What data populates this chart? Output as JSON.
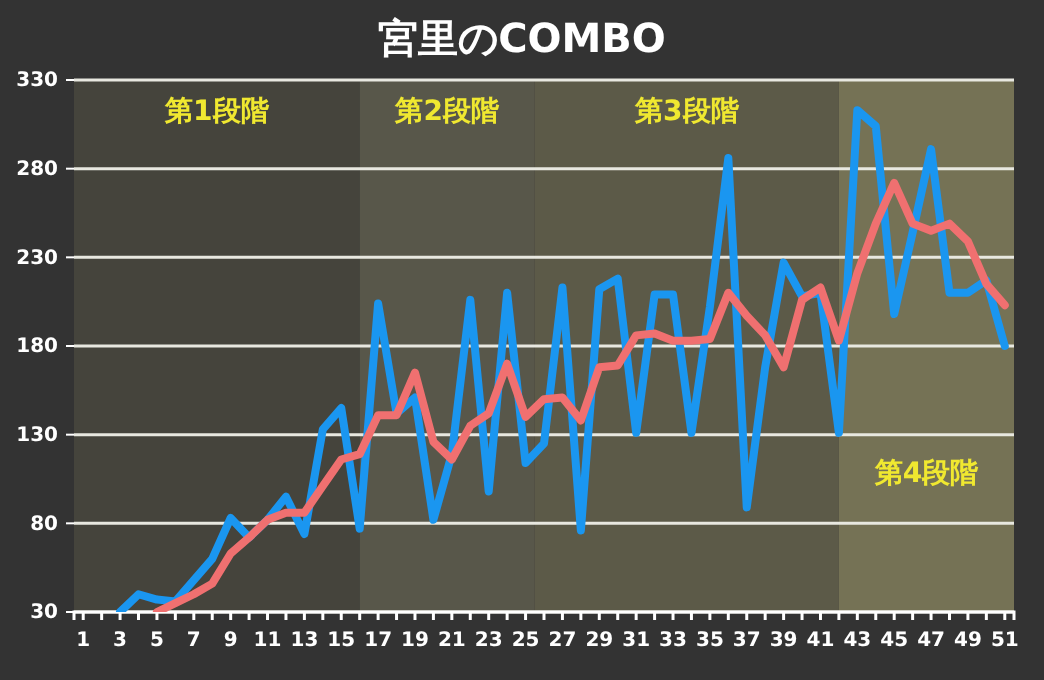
{
  "chart_data": {
    "type": "line",
    "title": "宮里のCOMBO",
    "series": [
      {
        "color": "#1a96f0",
        "x": [
          3,
          4,
          5,
          6,
          7,
          8,
          9,
          10,
          11,
          12,
          13,
          14,
          15,
          16,
          17,
          18,
          19,
          20,
          21,
          22,
          23,
          24,
          25,
          26,
          27,
          28,
          29,
          30,
          31,
          32,
          33,
          34,
          35,
          36,
          37,
          38,
          39,
          40,
          41,
          42,
          43,
          44,
          45,
          46,
          47,
          48,
          49,
          50,
          51
        ],
        "values": [
          30,
          40,
          37,
          36,
          48,
          60,
          83,
          72,
          82,
          95,
          74,
          133,
          145,
          77,
          204,
          142,
          151,
          82,
          119,
          206,
          98,
          210,
          114,
          125,
          213,
          76,
          212,
          218,
          131,
          209,
          209,
          131,
          202,
          286,
          89,
          168,
          227,
          208,
          210,
          131,
          313,
          304,
          198,
          244,
          291,
          210,
          210,
          217,
          180
        ]
      },
      {
        "color": "#f07070",
        "x": [
          5,
          6,
          7,
          8,
          9,
          10,
          11,
          12,
          13,
          14,
          15,
          16,
          17,
          18,
          19,
          20,
          21,
          22,
          23,
          24,
          25,
          26,
          27,
          28,
          29,
          30,
          31,
          32,
          33,
          34,
          35,
          36,
          37,
          38,
          39,
          40,
          41,
          42,
          43,
          44,
          45,
          46,
          47,
          48,
          49,
          50,
          51
        ],
        "values": [
          30,
          35,
          40,
          46,
          63,
          72,
          82,
          86,
          86,
          101,
          116,
          119,
          141,
          141,
          165,
          126,
          116,
          135,
          142,
          170,
          140,
          150,
          151,
          138,
          168,
          169,
          186,
          187,
          183,
          183,
          184,
          210,
          197,
          186,
          168,
          206,
          213,
          183,
          221,
          249,
          272,
          249,
          245,
          249,
          239,
          215,
          203
        ]
      }
    ],
    "xlim": [
      0.5,
      51.5
    ],
    "xticks": [
      1,
      {
        "value": 2,
        "label": null
      },
      3,
      {
        "value": 4,
        "label": null
      },
      5,
      {
        "value": 6,
        "label": null
      },
      7,
      {
        "value": 8,
        "label": null
      },
      9,
      {
        "value": 10,
        "label": null
      },
      11,
      {
        "value": 12,
        "label": null
      },
      13,
      {
        "value": 14,
        "label": null
      },
      15,
      {
        "value": 16,
        "label": null
      },
      17,
      {
        "value": 18,
        "label": null
      },
      19,
      {
        "value": 20,
        "label": null
      },
      21,
      {
        "value": 22,
        "label": null
      },
      23,
      {
        "value": 24,
        "label": null
      },
      25,
      {
        "value": 26,
        "label": null
      },
      27,
      {
        "value": 28,
        "label": null
      },
      29,
      {
        "value": 30,
        "label": null
      },
      31,
      {
        "value": 32,
        "label": null
      },
      33,
      {
        "value": 34,
        "label": null
      },
      35,
      {
        "value": 36,
        "label": null
      },
      37,
      {
        "value": 38,
        "label": null
      },
      39,
      {
        "value": 40,
        "label": null
      },
      41,
      {
        "value": 42,
        "label": null
      },
      43,
      {
        "value": 44,
        "label": null
      },
      45,
      {
        "value": 46,
        "label": null
      },
      47,
      {
        "value": 48,
        "label": null
      },
      49,
      {
        "value": 50,
        "label": null
      },
      51
    ],
    "ylim": [
      30,
      330
    ],
    "yticks": [
      30,
      80,
      130,
      180,
      230,
      280,
      330
    ],
    "grid": "y",
    "marker": "none",
    "line_style": "solid",
    "bands": [
      {
        "axis": "x",
        "from": 0.5,
        "to": 16,
        "color": "#45443c",
        "label": "第1段階"
      },
      {
        "axis": "x",
        "from": 16,
        "to": 25.5,
        "color": "#58574a",
        "label": "第2段階"
      },
      {
        "axis": "x",
        "from": 25.5,
        "to": 42,
        "color": "#5c5a48",
        "label": "第3段階"
      },
      {
        "axis": "x",
        "from": 42,
        "to": 51.5,
        "color": "#757255",
        "label": "第4段階"
      }
    ]
  }
}
